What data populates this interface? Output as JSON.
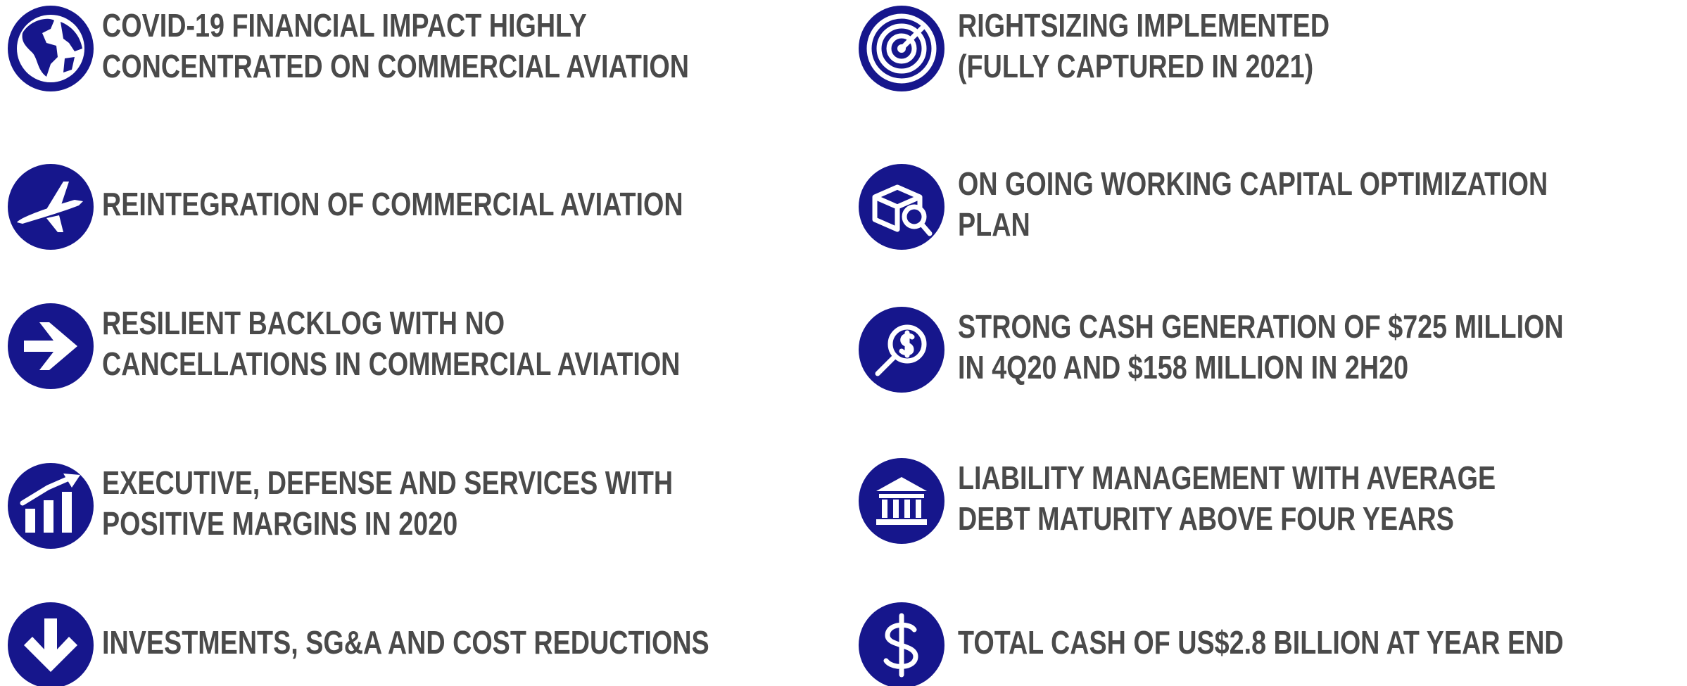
{
  "left": [
    {
      "lines": [
        "COVID-19 FINANCIAL IMPACT HIGHLY",
        "CONCENTRATED ON COMMERCIAL AVIATION"
      ]
    },
    {
      "lines": [
        "REINTEGRATION OF COMMERCIAL AVIATION"
      ]
    },
    {
      "lines": [
        "RESILIENT BACKLOG WITH NO",
        "CANCELLATIONS IN COMMERCIAL AVIATION"
      ]
    },
    {
      "lines": [
        "EXECUTIVE, DEFENSE AND SERVICES WITH",
        "POSITIVE MARGINS IN 2020"
      ]
    },
    {
      "lines": [
        "INVESTMENTS, SG&A AND COST REDUCTIONS"
      ]
    }
  ],
  "right": [
    {
      "lines": [
        "RIGHTSIZING IMPLEMENTED",
        "(FULLY CAPTURED IN 2021)"
      ]
    },
    {
      "lines": [
        "ON GOING WORKING CAPITAL OPTIMIZATION",
        "PLAN"
      ]
    },
    {
      "lines": [
        "STRONG CASH GENERATION OF $725 MILLION",
        "IN 4Q20 AND $158 MILLION IN 2H20"
      ]
    },
    {
      "lines": [
        "LIABILITY MANAGEMENT WITH AVERAGE",
        "DEBT MATURITY ABOVE FOUR YEARS"
      ]
    },
    {
      "lines": [
        "TOTAL CASH OF US$2.8 BILLION AT YEAR END"
      ]
    }
  ]
}
